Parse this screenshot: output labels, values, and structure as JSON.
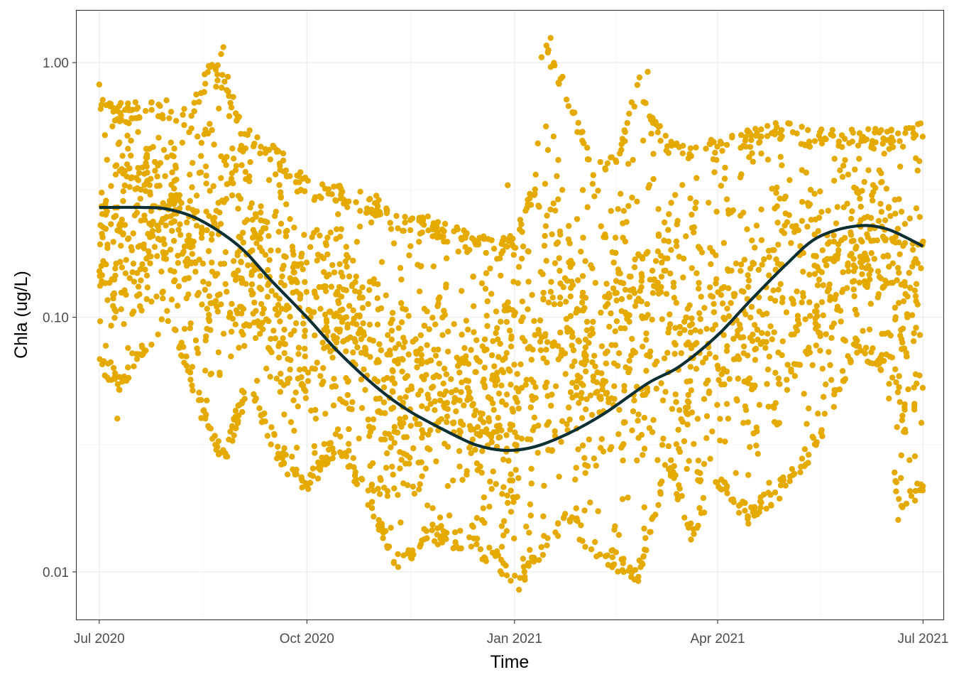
{
  "chart_data": {
    "type": "scatter",
    "xlabel": "Time",
    "ylabel": "Chla (ug/L)",
    "x_scale": "time",
    "y_scale": "log10",
    "xlim": [
      "2020-06-21",
      "2021-07-10"
    ],
    "ylim": [
      0.0065,
      1.6
    ],
    "x_ticks": [
      {
        "value": "2020-07-01",
        "label": "Jul 2020"
      },
      {
        "value": "2020-10-01",
        "label": "Oct 2020"
      },
      {
        "value": "2021-01-01",
        "label": "Jan 2021"
      },
      {
        "value": "2021-04-01",
        "label": "Apr 2021"
      },
      {
        "value": "2021-07-01",
        "label": "Jul 2021"
      }
    ],
    "y_ticks": [
      {
        "value": 1.0,
        "label": "1.00"
      },
      {
        "value": 0.1,
        "label": "0.10"
      },
      {
        "value": 0.01,
        "label": "0.01"
      }
    ],
    "grid": true,
    "legend": "none",
    "point_color": "#E5AA00",
    "trend_color": "#0B2F33",
    "point_envelope": [
      {
        "date": "2020-07-01",
        "low": 0.06,
        "high": 0.75
      },
      {
        "date": "2020-07-10",
        "low": 0.05,
        "high": 0.7
      },
      {
        "date": "2020-07-20",
        "low": 0.07,
        "high": 0.7
      },
      {
        "date": "2020-08-01",
        "low": 0.09,
        "high": 0.72
      },
      {
        "date": "2020-08-10",
        "low": 0.055,
        "high": 0.65
      },
      {
        "date": "2020-08-20",
        "low": 0.03,
        "high": 1.1
      },
      {
        "date": "2020-08-25",
        "low": 0.025,
        "high": 0.9
      },
      {
        "date": "2020-09-05",
        "low": 0.05,
        "high": 0.55
      },
      {
        "date": "2020-09-20",
        "low": 0.025,
        "high": 0.45
      },
      {
        "date": "2020-10-01",
        "low": 0.02,
        "high": 0.35
      },
      {
        "date": "2020-10-15",
        "low": 0.03,
        "high": 0.33
      },
      {
        "date": "2020-11-01",
        "low": 0.015,
        "high": 0.3
      },
      {
        "date": "2020-11-10",
        "low": 0.01,
        "high": 0.25
      },
      {
        "date": "2020-11-25",
        "low": 0.013,
        "high": 0.25
      },
      {
        "date": "2020-12-10",
        "low": 0.012,
        "high": 0.22
      },
      {
        "date": "2020-12-25",
        "low": 0.01,
        "high": 0.2
      },
      {
        "date": "2021-01-01",
        "low": 0.0085,
        "high": 0.22
      },
      {
        "date": "2021-01-10",
        "low": 0.01,
        "high": 0.35
      },
      {
        "date": "2021-01-15",
        "low": 0.012,
        "high": 1.2
      },
      {
        "date": "2021-01-25",
        "low": 0.015,
        "high": 0.8
      },
      {
        "date": "2021-02-05",
        "low": 0.011,
        "high": 0.4
      },
      {
        "date": "2021-02-15",
        "low": 0.01,
        "high": 0.45
      },
      {
        "date": "2021-02-25",
        "low": 0.009,
        "high": 0.9
      },
      {
        "date": "2021-03-10",
        "low": 0.025,
        "high": 0.5
      },
      {
        "date": "2021-03-20",
        "low": 0.013,
        "high": 0.5
      },
      {
        "date": "2021-04-01",
        "low": 0.02,
        "high": 0.5
      },
      {
        "date": "2021-04-15",
        "low": 0.015,
        "high": 0.55
      },
      {
        "date": "2021-05-01",
        "low": 0.02,
        "high": 0.6
      },
      {
        "date": "2021-05-15",
        "low": 0.03,
        "high": 0.55
      },
      {
        "date": "2021-06-01",
        "low": 0.07,
        "high": 0.55
      },
      {
        "date": "2021-06-15",
        "low": 0.06,
        "high": 0.55
      },
      {
        "date": "2021-06-20",
        "low": 0.016,
        "high": 0.55
      },
      {
        "date": "2021-07-01",
        "low": 0.02,
        "high": 0.6
      }
    ],
    "outliers": [
      {
        "date": "2020-07-01",
        "value": 0.82
      },
      {
        "date": "2020-08-25",
        "value": 1.15
      },
      {
        "date": "2020-08-24",
        "value": 1.08
      },
      {
        "date": "2020-08-20",
        "value": 0.98
      },
      {
        "date": "2020-08-27",
        "value": 0.88
      },
      {
        "date": "2021-01-17",
        "value": 1.25
      },
      {
        "date": "2021-01-16",
        "value": 1.12
      },
      {
        "date": "2021-01-13",
        "value": 1.05
      },
      {
        "date": "2021-03-01",
        "value": 0.92
      },
      {
        "date": "2020-12-29",
        "value": 0.33
      },
      {
        "date": "2021-01-03",
        "value": 0.0085
      },
      {
        "date": "2021-06-20",
        "value": 0.016
      },
      {
        "date": "2020-07-09",
        "value": 0.04
      }
    ],
    "trend": [
      {
        "date": "2020-07-01",
        "value": 0.27
      },
      {
        "date": "2020-07-20",
        "value": 0.27
      },
      {
        "date": "2020-08-01",
        "value": 0.265
      },
      {
        "date": "2020-08-15",
        "value": 0.24
      },
      {
        "date": "2020-09-01",
        "value": 0.19
      },
      {
        "date": "2020-09-15",
        "value": 0.14
      },
      {
        "date": "2020-10-01",
        "value": 0.1
      },
      {
        "date": "2020-10-15",
        "value": 0.073
      },
      {
        "date": "2020-11-01",
        "value": 0.053
      },
      {
        "date": "2020-11-15",
        "value": 0.043
      },
      {
        "date": "2020-12-01",
        "value": 0.036
      },
      {
        "date": "2020-12-15",
        "value": 0.0315
      },
      {
        "date": "2020-12-28",
        "value": 0.03
      },
      {
        "date": "2021-01-10",
        "value": 0.031
      },
      {
        "date": "2021-01-25",
        "value": 0.035
      },
      {
        "date": "2021-02-10",
        "value": 0.042
      },
      {
        "date": "2021-03-01",
        "value": 0.055
      },
      {
        "date": "2021-03-15",
        "value": 0.064
      },
      {
        "date": "2021-04-01",
        "value": 0.085
      },
      {
        "date": "2021-04-15",
        "value": 0.115
      },
      {
        "date": "2021-05-01",
        "value": 0.16
      },
      {
        "date": "2021-05-15",
        "value": 0.205
      },
      {
        "date": "2021-06-01",
        "value": 0.228
      },
      {
        "date": "2021-06-15",
        "value": 0.222
      },
      {
        "date": "2021-07-01",
        "value": 0.19
      }
    ]
  }
}
